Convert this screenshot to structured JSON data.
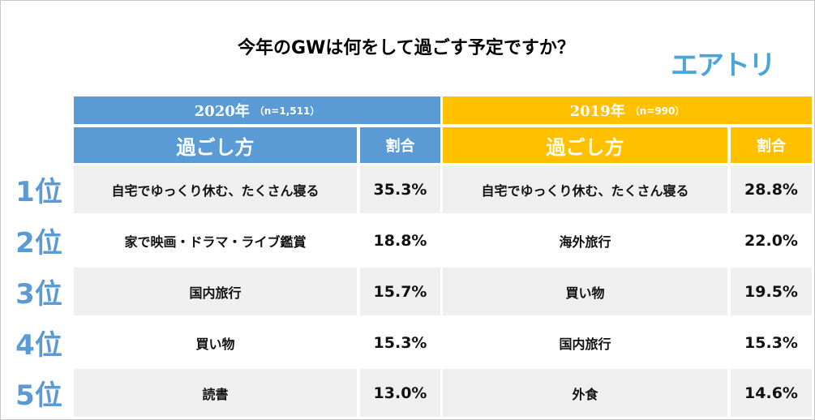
{
  "title": "今年のGWは何をして過ごす予定ですか？",
  "logo": "エアトリ",
  "chart_data": {
    "type": "table",
    "groups": [
      {
        "year": "2020年",
        "n": "（n=1,511）",
        "col_way": "過ごし方",
        "col_pct": "割合",
        "rows": [
          {
            "rank": "1位",
            "activity": "自宅でゆっくり休む、たくさん寝る",
            "pct": "35.3%"
          },
          {
            "rank": "2位",
            "activity": "家で映画・ドラマ・ライブ鑑賞",
            "pct": "18.8%"
          },
          {
            "rank": "3位",
            "activity": "国内旅行",
            "pct": "15.7%"
          },
          {
            "rank": "4位",
            "activity": "買い物",
            "pct": "15.3%"
          },
          {
            "rank": "5位",
            "activity": "読書",
            "pct": "13.0%"
          }
        ]
      },
      {
        "year": "2019年",
        "n": "（n=990）",
        "col_way": "過ごし方",
        "col_pct": "割合",
        "rows": [
          {
            "rank": "1位",
            "activity": "自宅でゆっくり休む、たくさん寝る",
            "pct": "28.8%"
          },
          {
            "rank": "2位",
            "activity": "海外旅行",
            "pct": "22.0%"
          },
          {
            "rank": "3位",
            "activity": "買い物",
            "pct": "19.5%"
          },
          {
            "rank": "4位",
            "activity": "国内旅行",
            "pct": "15.3%"
          },
          {
            "rank": "5位",
            "activity": "外食",
            "pct": "14.6%"
          }
        ]
      }
    ]
  }
}
